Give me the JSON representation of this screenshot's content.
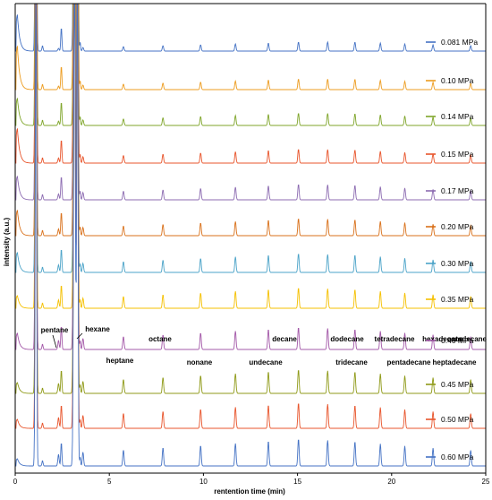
{
  "chart_data": {
    "type": "line",
    "xlabel": "rentention time (min)",
    "ylabel": "intensity (a.u.)",
    "xlim": [
      0,
      25
    ],
    "x_ticks": [
      "0",
      "5",
      "10",
      "15",
      "20",
      "25"
    ],
    "grid": false,
    "legend": "right, one entry per trace",
    "baseline_offsets": "vertically stacked chromatograms, top = 0.081 MPa",
    "series": [
      {
        "name": "0.081 MPa",
        "color": "#4472C4"
      },
      {
        "name": "0.10 MPa",
        "color": "#ED9C1F"
      },
      {
        "name": "0.14 MPa",
        "color": "#7FA52A"
      },
      {
        "name": "0.15 MPa",
        "color": "#E8552C"
      },
      {
        "name": "0.17 MPa",
        "color": "#8C6BB1"
      },
      {
        "name": "0.20 MPa",
        "color": "#D9711B"
      },
      {
        "name": "0.30 MPa",
        "color": "#4BA3C8"
      },
      {
        "name": "0.35 MPa",
        "color": "#F5C000"
      },
      {
        "name": "0.40 MPa",
        "color": "#A358A8"
      },
      {
        "name": "0.45 MPa",
        "color": "#8F9A18"
      },
      {
        "name": "0.50 MPa",
        "color": "#E8552C"
      },
      {
        "name": "0.60 MPa",
        "color": "#4472C4"
      }
    ],
    "peaks": [
      {
        "name": "pentane",
        "rt": 2.3
      },
      {
        "name": "hexane",
        "rt": 3.6
      },
      {
        "name": "heptane",
        "rt": 5.75
      },
      {
        "name": "octane",
        "rt": 7.85
      },
      {
        "name": "nonane",
        "rt": 9.85
      },
      {
        "name": "decane",
        "rt": 11.7
      },
      {
        "name": "undecane",
        "rt": 13.45
      },
      {
        "name": "dodecane",
        "rt": 15.05
      },
      {
        "name": "tridecane",
        "rt": 16.6
      },
      {
        "name": "tetradecane",
        "rt": 18.05
      },
      {
        "name": "pentadecane",
        "rt": 19.4
      },
      {
        "name": "hexadecane",
        "rt": 20.7
      },
      {
        "name": "heptadecane",
        "rt": 22.2
      },
      {
        "name": "octadecane",
        "rt": 24.2
      }
    ]
  }
}
